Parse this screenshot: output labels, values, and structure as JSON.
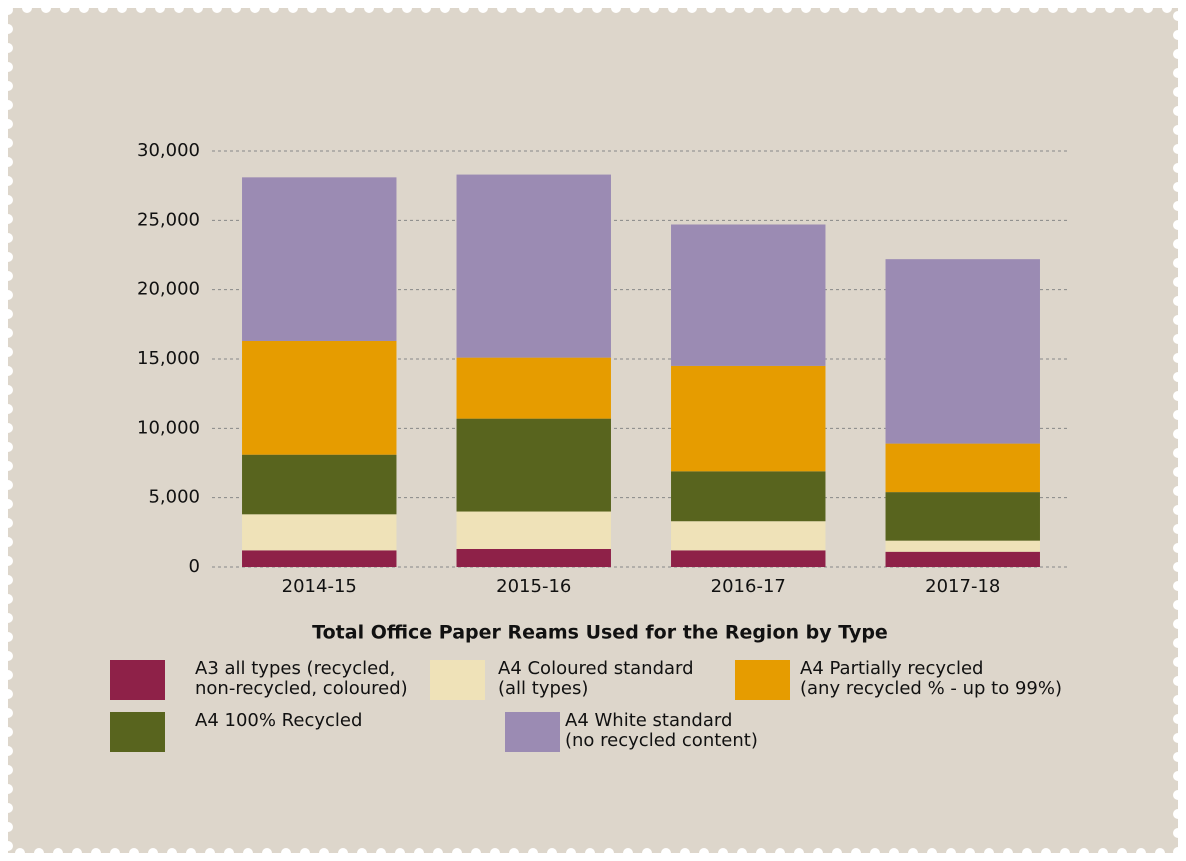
{
  "chart_data": {
    "type": "stacked_bar",
    "title": "Total Office Paper Reams Used for the Region by Type",
    "categories": [
      "2014-15",
      "2015-16",
      "2016-17",
      "2017-18"
    ],
    "series": [
      {
        "name": "A3 all types (recycled,\nnon-recycled, coloured)",
        "color": "#8e2148",
        "values": [
          1200,
          1300,
          1200,
          1100
        ]
      },
      {
        "name": "A4 Coloured standard\n(all types)",
        "color": "#efe2b8",
        "values": [
          2600,
          2700,
          2100,
          800
        ]
      },
      {
        "name": "A4 100% Recycled",
        "color": "#58641e",
        "values": [
          4300,
          6700,
          3600,
          3500
        ]
      },
      {
        "name": "A4 Partially recycled\n(any recycled % - up to 99%)",
        "color": "#e69c00",
        "values": [
          8200,
          4400,
          7600,
          3500
        ]
      },
      {
        "name": "A4 White standard\n(no recycled content)",
        "color": "#9b8bb3",
        "values": [
          11800,
          13200,
          10200,
          13300
        ]
      }
    ],
    "ylim": [
      0,
      30000
    ],
    "yticks": [
      0,
      {
        "value": 5000,
        "label": "5,000"
      },
      {
        "value": 10000,
        "label": "10,000"
      },
      {
        "value": 15000,
        "label": "15,000"
      },
      {
        "value": 20000,
        "label": "20,000"
      },
      {
        "value": 25000,
        "label": "25,000"
      },
      {
        "value": 30000,
        "label": "30,000"
      }
    ],
    "grid": true
  }
}
